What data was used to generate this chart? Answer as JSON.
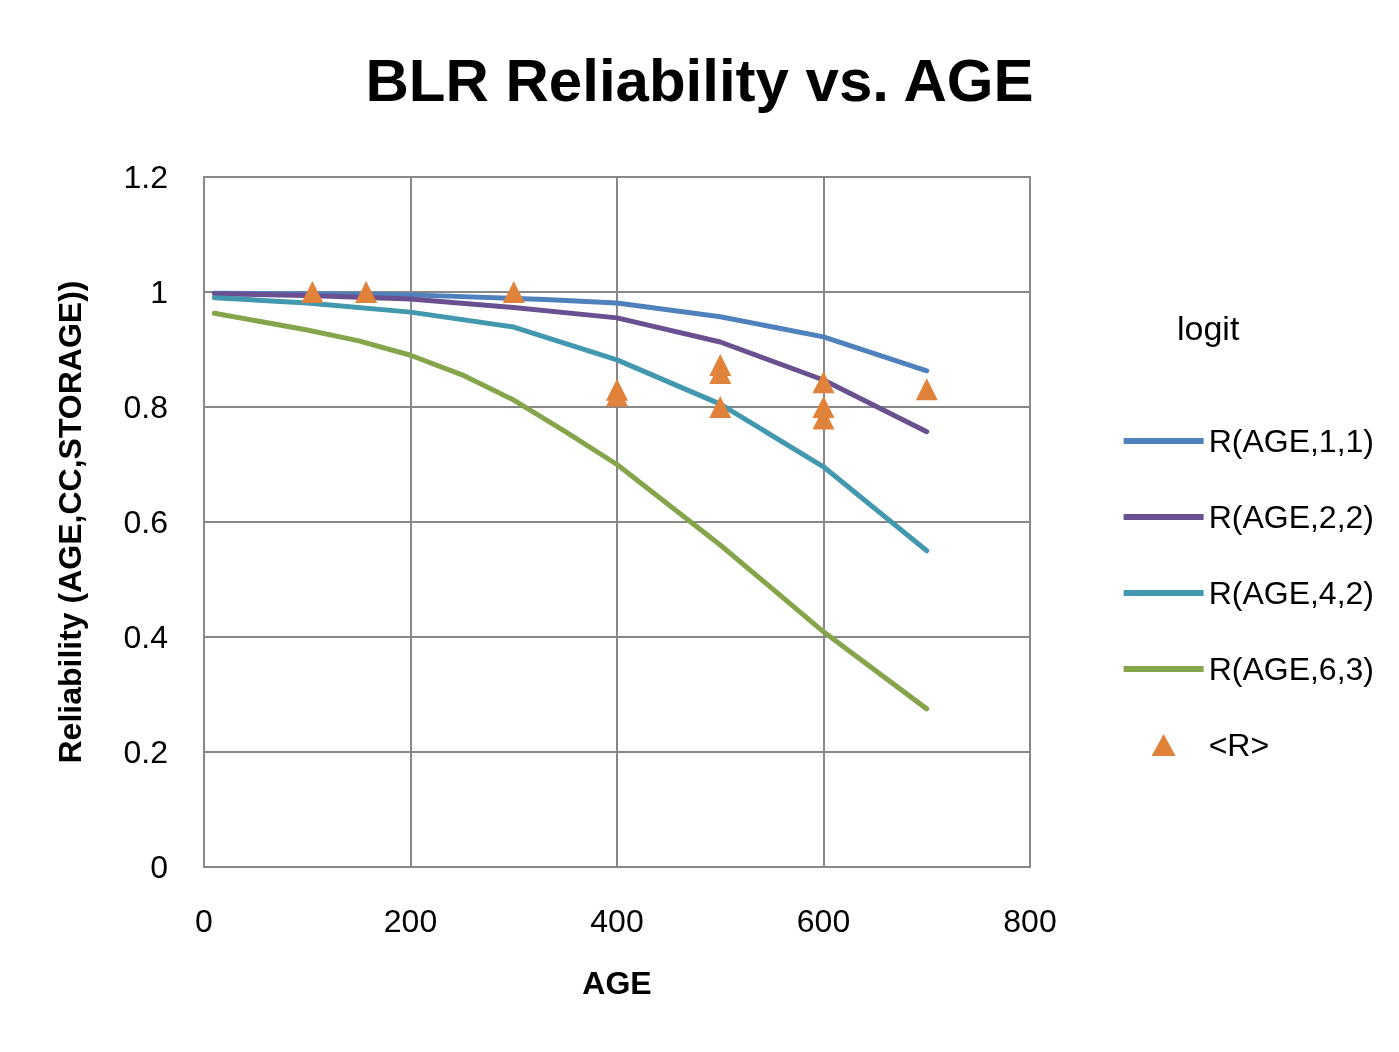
{
  "chart_data": {
    "type": "line",
    "title": "BLR Reliability vs. AGE",
    "xlabel": "AGE",
    "ylabel": "Reliability (AGE,CC,STORAGE))",
    "legend_title": "logit",
    "xlim": [
      0,
      800
    ],
    "xticks": [
      0,
      200,
      400,
      600,
      800
    ],
    "ylim": [
      0,
      1.2
    ],
    "yticks": [
      0,
      0.2,
      0.4,
      0.6,
      0.8,
      1,
      1.2
    ],
    "grid": true,
    "legend": "right",
    "marker": "none",
    "line_style": "solid",
    "series": [
      {
        "name": "R(AGE,1,1)",
        "color": "#4f81bd",
        "x": [
          10,
          100,
          200,
          330,
          400,
          500,
          600,
          700
        ],
        "values": [
          0.998,
          0.997,
          0.995,
          0.987,
          0.981,
          0.957,
          0.922,
          0.863
        ]
      },
      {
        "name": "R(AGE,2,2)",
        "color": "#6a5090",
        "x": [
          10,
          100,
          200,
          300,
          400,
          500,
          600,
          700
        ],
        "values": [
          0.997,
          0.994,
          0.988,
          0.973,
          0.955,
          0.913,
          0.847,
          0.757
        ]
      },
      {
        "name": "R(AGE,4,2)",
        "color": "#4198af",
        "x": [
          10,
          100,
          200,
          300,
          400,
          500,
          600,
          700
        ],
        "values": [
          0.99,
          0.981,
          0.965,
          0.939,
          0.882,
          0.805,
          0.696,
          0.55
        ]
      },
      {
        "name": "R(AGE,6,3)",
        "color": "#84a54a",
        "x": [
          10,
          100,
          150,
          200,
          250,
          300,
          350,
          400,
          500,
          600,
          700
        ],
        "values": [
          0.963,
          0.934,
          0.915,
          0.89,
          0.856,
          0.812,
          0.757,
          0.7,
          0.56,
          0.409,
          0.275
        ]
      },
      {
        "name": "<R>",
        "type": "scatter",
        "marker": "triangle",
        "color": "#e0823a",
        "x": [
          105,
          157,
          300,
          400,
          400,
          500,
          500,
          500,
          600,
          600,
          600,
          700
        ],
        "values": [
          1,
          1,
          1,
          0.83,
          0.82,
          0.873,
          0.859,
          0.8,
          0.843,
          0.8,
          0.78,
          0.831
        ]
      }
    ]
  }
}
